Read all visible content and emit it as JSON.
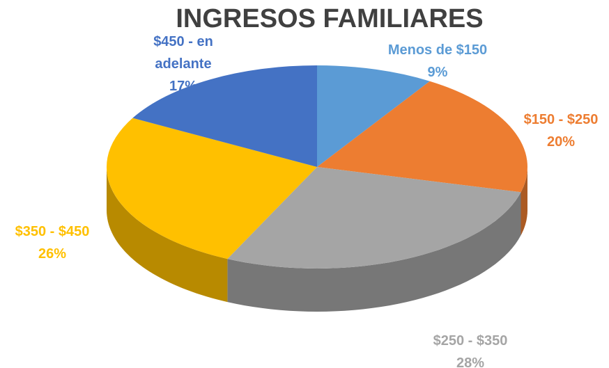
{
  "chart_data": {
    "type": "pie",
    "title": "INGRESOS FAMILIARES",
    "categories": [
      "Menos de $150",
      "$150 - $250",
      "$250 - $350",
      "$350 - $450",
      "$450 - en adelante"
    ],
    "values": [
      9,
      20,
      28,
      26,
      17
    ],
    "value_labels": [
      "9%",
      "20%",
      "28%",
      "26%",
      "17%"
    ],
    "colors": [
      "#5b9bd5",
      "#ed7d31",
      "#a5a5a5",
      "#ffc000",
      "#4472c4"
    ]
  }
}
